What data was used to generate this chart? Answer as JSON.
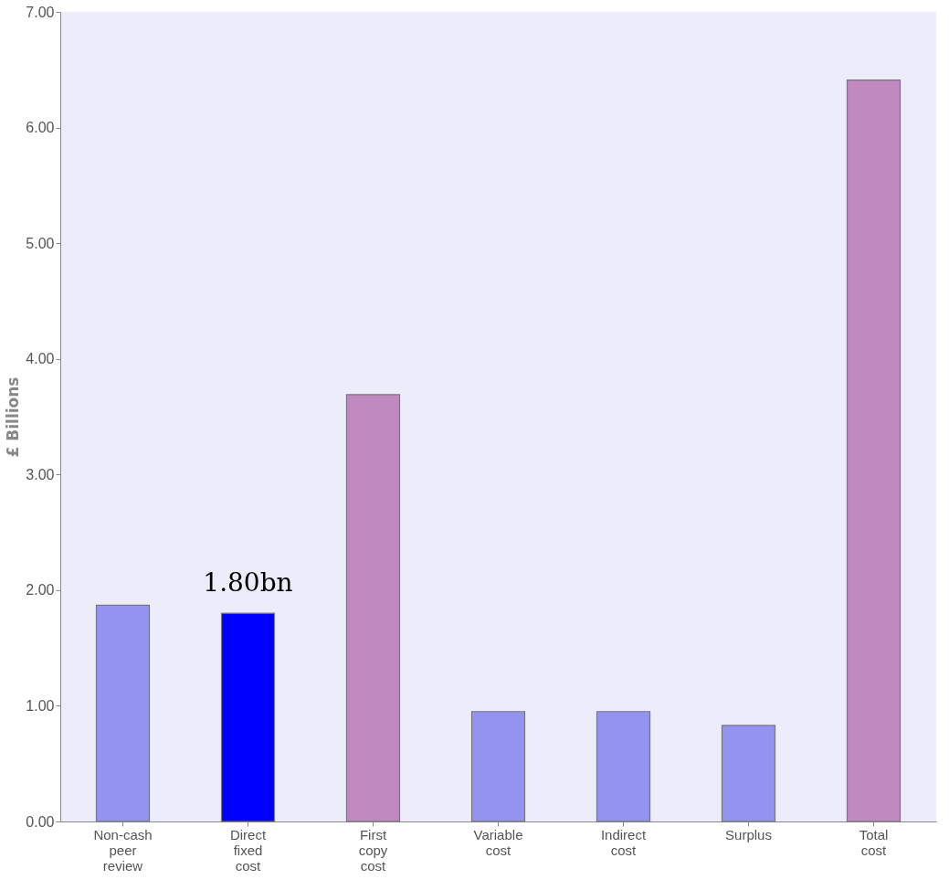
{
  "chart_data": {
    "type": "bar",
    "ylabel": "£ Billions",
    "categories": [
      "Non-cash peer review",
      "Direct fixed cost",
      "First copy cost",
      "Variable cost",
      "Indirect cost",
      "Surplus",
      "Total cost"
    ],
    "values": [
      1.87,
      1.8,
      3.69,
      0.95,
      0.95,
      0.83,
      6.41
    ],
    "colors": [
      "#9494f0",
      "#0000ff",
      "#c08ac0",
      "#9494f0",
      "#9494f0",
      "#9494f0",
      "#c08ac0"
    ],
    "value_labels": [
      null,
      "1.80bn",
      null,
      null,
      null,
      null,
      null
    ],
    "ylim": [
      0,
      7
    ],
    "yticks": [
      {
        "value": 0,
        "label": "0.00"
      },
      {
        "value": 1,
        "label": "1.00"
      },
      {
        "value": 2,
        "label": "2.00"
      },
      {
        "value": 3,
        "label": "3.00"
      },
      {
        "value": 4,
        "label": "4.00"
      },
      {
        "value": 5,
        "label": "5.00"
      },
      {
        "value": 6,
        "label": "6.00"
      },
      {
        "value": 7,
        "label": "7.00"
      }
    ],
    "grid": false
  }
}
